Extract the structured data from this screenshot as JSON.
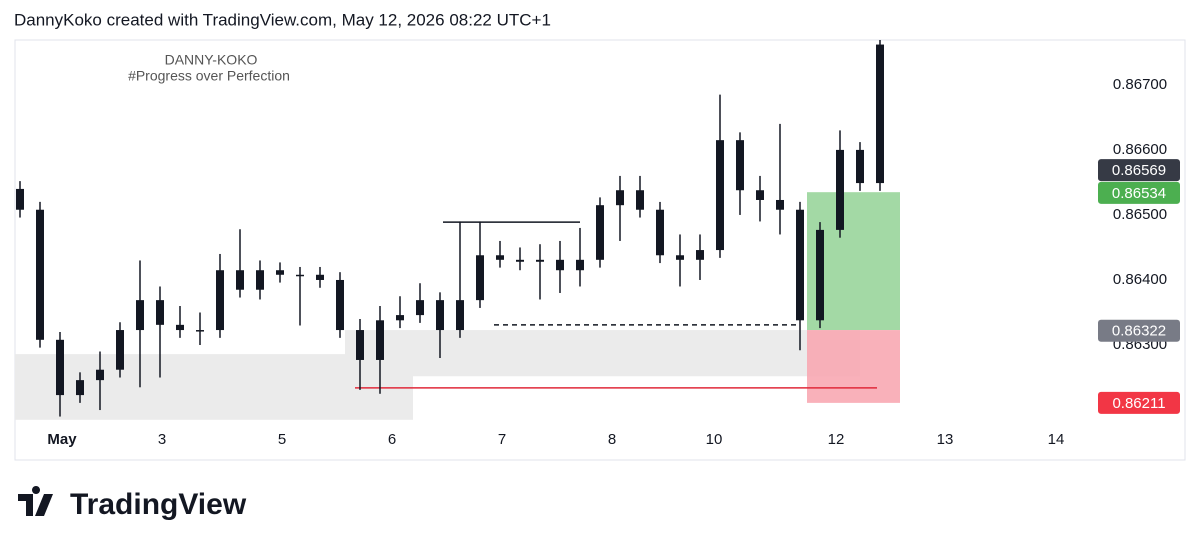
{
  "header": "DannyKoko created with TradingView.com, May 12, 2026 08:22 UTC+1",
  "logo_text": "TradingView",
  "chart_data": {
    "type": "candlestick",
    "watermark": [
      "DANNY-KOKO",
      "#Progress over Perfection"
    ],
    "color": "#131722",
    "x": [
      0,
      2,
      4,
      6,
      8,
      10,
      12,
      14,
      16,
      18,
      20,
      22,
      24,
      26,
      28,
      30,
      32,
      34,
      36,
      38,
      40,
      42,
      44,
      46,
      48,
      50,
      52,
      54,
      56,
      58,
      60,
      62,
      64,
      66,
      68,
      70,
      72,
      74,
      76,
      78,
      80,
      82,
      84,
      86
    ],
    "open": [
      0.8654,
      0.86508,
      0.86308,
      0.86223,
      0.86246,
      0.86262,
      0.86323,
      0.86369,
      0.86331,
      0.86323,
      0.86323,
      0.86415,
      0.86385,
      0.86415,
      0.86408,
      0.86408,
      0.864,
      0.86323,
      0.86277,
      0.86338,
      0.86346,
      0.86369,
      0.86323,
      0.86369,
      0.86438,
      0.86431,
      0.86428,
      0.86431,
      0.86415,
      0.86431,
      0.86515,
      0.86538,
      0.86508,
      0.86438,
      0.86431,
      0.86446,
      0.86615,
      0.86538,
      0.86523,
      0.86508,
      0.86338,
      0.86477,
      0.866,
      0.86549
    ],
    "high": [
      0.86552,
      0.8652,
      0.8632,
      0.86258,
      0.8629,
      0.86335,
      0.8643,
      0.8639,
      0.8636,
      0.8635,
      0.8644,
      0.86478,
      0.8643,
      0.86427,
      0.8642,
      0.8642,
      0.86412,
      0.8634,
      0.8636,
      0.86375,
      0.86395,
      0.86381,
      0.8649,
      0.8649,
      0.8646,
      0.8645,
      0.86455,
      0.8646,
      0.8648,
      0.86527,
      0.8656,
      0.8656,
      0.8652,
      0.8647,
      0.8647,
      0.86685,
      0.86627,
      0.8656,
      0.8664,
      0.8652,
      0.86489,
      0.8663,
      0.86612,
      0.86769
    ],
    "low": [
      0.86496,
      0.86296,
      0.8619,
      0.86211,
      0.862,
      0.8625,
      0.86235,
      0.8625,
      0.86311,
      0.863,
      0.86311,
      0.86373,
      0.8637,
      0.86396,
      0.8633,
      0.86388,
      0.86311,
      0.86231,
      0.86225,
      0.86326,
      0.86334,
      0.8628,
      0.86311,
      0.86357,
      0.86419,
      0.86415,
      0.8637,
      0.8638,
      0.8639,
      0.86419,
      0.8646,
      0.86496,
      0.86426,
      0.8639,
      0.864,
      0.86434,
      0.865,
      0.8649,
      0.8647,
      0.86292,
      0.86326,
      0.86465,
      0.86537,
      0.86537
    ],
    "close": [
      0.86508,
      0.86308,
      0.86223,
      0.86246,
      0.86262,
      0.86323,
      0.86369,
      0.86331,
      0.86323,
      0.86323,
      0.86415,
      0.86385,
      0.86415,
      0.86408,
      0.86408,
      0.864,
      0.86323,
      0.86277,
      0.86338,
      0.86346,
      0.86369,
      0.86323,
      0.86369,
      0.86438,
      0.86431,
      0.86428,
      0.86431,
      0.86415,
      0.86431,
      0.86515,
      0.86538,
      0.86508,
      0.86438,
      0.86431,
      0.86446,
      0.86615,
      0.86538,
      0.86523,
      0.86508,
      0.86338,
      0.86477,
      0.866,
      0.86549,
      0.86762
    ],
    "xlim": [
      -0.5,
      106.5
    ],
    "xticks": [
      {
        "value": 4.2,
        "label": "May"
      },
      {
        "value": 14.2,
        "label": "3"
      },
      {
        "value": 26.2,
        "label": "5"
      },
      {
        "value": 37.2,
        "label": "6"
      },
      {
        "value": 48.2,
        "label": "7"
      },
      {
        "value": 59.2,
        "label": "8"
      },
      {
        "value": 69.4,
        "label": "10"
      },
      {
        "value": 81.6,
        "label": "12"
      },
      {
        "value": 92.5,
        "label": "13"
      },
      {
        "value": 103.6,
        "label": "14"
      }
    ],
    "ylim": [
      0.86177,
      0.86769
    ],
    "yticks": [
      {
        "value": 0.863,
        "label": "0.86300"
      },
      {
        "value": 0.864,
        "label": "0.86400"
      },
      {
        "value": 0.865,
        "label": "0.86500"
      },
      {
        "value": 0.866,
        "label": "0.86600"
      },
      {
        "value": 0.867,
        "label": "0.86700"
      }
    ],
    "zones": [
      {
        "x0": -0.5,
        "x1": 39.3,
        "y0": 0.86185,
        "y1": 0.86286,
        "color": "#ebebeb"
      },
      {
        "x0": 32.5,
        "x1": 84,
        "y0": 0.86252,
        "y1": 0.86323,
        "color": "#ebebeb"
      }
    ],
    "position": {
      "x0": 78.7,
      "x1": 88,
      "target": 0.86535,
      "entry": 0.86323,
      "stop": 0.86211,
      "profit_color": "#a3d9a5",
      "loss_color": "#f8a9b2"
    },
    "lines": [
      {
        "x0": 33.5,
        "x1": 85.7,
        "y": 0.86234,
        "color": "#e0293a",
        "dashed": false
      },
      {
        "x0": 42.3,
        "x1": 56,
        "y": 0.86489,
        "color": "#131722",
        "dashed": false
      },
      {
        "x0": 47.4,
        "x1": 78,
        "y": 0.86331,
        "color": "#131722",
        "dashed": true
      }
    ],
    "price_labels": [
      {
        "value": 0.86569,
        "label": "0.86569",
        "color": "#363a45"
      },
      {
        "value": 0.86534,
        "label": "0.86534",
        "color": "#4caf50"
      },
      {
        "value": 0.86322,
        "label": "0.86322",
        "color": "#787b86"
      },
      {
        "value": 0.86211,
        "label": "0.86211",
        "color": "#f23645"
      }
    ]
  }
}
